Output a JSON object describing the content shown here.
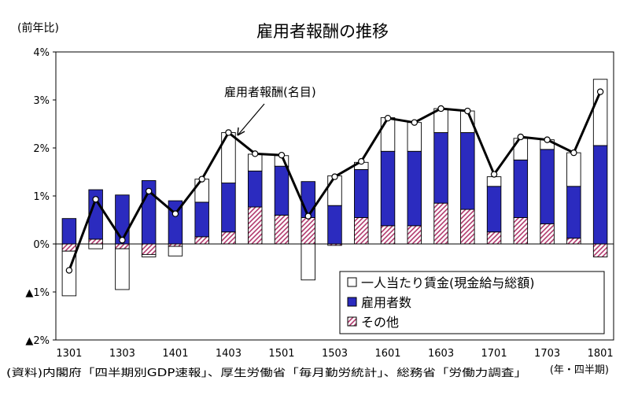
{
  "chart_data": {
    "type": "bar",
    "title": "雇用者報酬の推移",
    "ylabel": "(前年比)",
    "xlabel": "(年・四半期)",
    "source": "(資料)内閣府「四半期別GDP速報」、厚生労働省「毎月勤労統計」、総務省「労働力調査」",
    "annotation": "雇用者報酬(名目)",
    "ylim": [
      -2,
      4
    ],
    "yticks": [
      {
        "value": 4,
        "label": "4%"
      },
      {
        "value": 3,
        "label": "3%"
      },
      {
        "value": 2,
        "label": "2%"
      },
      {
        "value": 1,
        "label": "1%"
      },
      {
        "value": 0,
        "label": "0%"
      },
      {
        "value": -1,
        "label": "▲1%"
      },
      {
        "value": -2,
        "label": "▲2%"
      }
    ],
    "xtick_labels": [
      "1301",
      "1303",
      "1401",
      "1403",
      "1501",
      "1503",
      "1601",
      "1603",
      "1701",
      "1703",
      "1801"
    ],
    "categories": [
      "1301",
      "1302",
      "1303",
      "1304",
      "1401",
      "1402",
      "1403",
      "1404",
      "1501",
      "1502",
      "1503",
      "1504",
      "1601",
      "1602",
      "1603",
      "1604",
      "1701",
      "1702",
      "1703",
      "1704",
      "1801"
    ],
    "legend_position": "bottom-right",
    "colors": {
      "wage": "#ffffff",
      "employees": "#2b2bbf",
      "other_stripe": "#b23a6e",
      "line": "#000000"
    },
    "series": [
      {
        "name": "一人当たり賃金(現金給与総額)",
        "kind": "bar",
        "values": [
          -0.93,
          -0.1,
          -0.85,
          -0.05,
          -0.2,
          0.48,
          1.05,
          0.35,
          0.22,
          -0.75,
          0.62,
          0.15,
          0.7,
          0.6,
          0.5,
          0.45,
          0.2,
          0.45,
          0.2,
          0.7,
          1.38
        ]
      },
      {
        "name": "雇用者数",
        "kind": "bar",
        "values": [
          0.53,
          1.03,
          1.02,
          1.32,
          0.9,
          0.72,
          1.02,
          0.75,
          1.02,
          0.75,
          0.8,
          1.0,
          1.55,
          1.55,
          1.47,
          1.6,
          0.95,
          1.2,
          1.55,
          1.08,
          2.05
        ]
      },
      {
        "name": "その他",
        "kind": "bar",
        "values": [
          -0.15,
          0.1,
          -0.1,
          -0.22,
          -0.05,
          0.15,
          0.25,
          0.77,
          0.6,
          0.55,
          -0.03,
          0.55,
          0.38,
          0.38,
          0.85,
          0.72,
          0.25,
          0.55,
          0.42,
          0.12,
          -0.27
        ]
      },
      {
        "name": "雇用者報酬(名目)",
        "kind": "line",
        "values": [
          -0.55,
          0.93,
          0.08,
          1.1,
          0.63,
          1.35,
          2.32,
          1.88,
          1.85,
          0.58,
          1.4,
          1.72,
          2.62,
          2.53,
          2.82,
          2.77,
          1.45,
          2.23,
          2.17,
          1.9,
          3.17
        ]
      }
    ]
  }
}
